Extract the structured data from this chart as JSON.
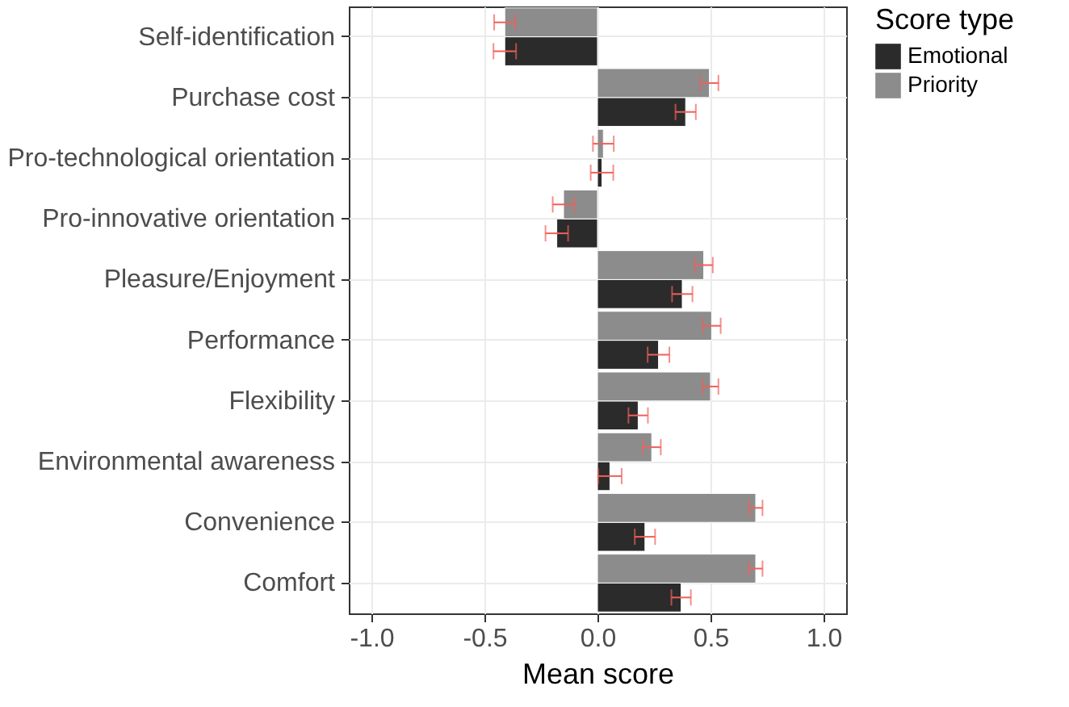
{
  "chart_data": {
    "type": "bar",
    "orientation": "horizontal",
    "xlabel": "Mean score",
    "legend_title": "Score type",
    "legend": "right",
    "grid": true,
    "categories": [
      "Self-identification",
      "Purchase cost",
      "Pro-technological orientation",
      "Pro-innovative orientation",
      "Pleasure/Enjoyment",
      "Performance",
      "Flexibility",
      "Environmental awareness",
      "Convenience",
      "Comfort"
    ],
    "xlim": [
      -1.1,
      1.1
    ],
    "xticks": [
      {
        "value": -1,
        "label": "-1.0"
      },
      {
        "value": -0.5,
        "label": "-0.5"
      },
      {
        "value": 0,
        "label": "0.0"
      },
      {
        "value": 0.5,
        "label": "0.5"
      },
      {
        "value": 1,
        "label": "1.0"
      }
    ],
    "series": [
      {
        "name": "Emotional",
        "color": "#2b2b2b",
        "values": [
          -0.41,
          0.39,
          0.02,
          -0.18,
          0.375,
          0.27,
          0.18,
          0.055,
          0.21,
          0.37
        ],
        "errors": [
          0.05,
          0.045,
          0.05,
          0.05,
          0.045,
          0.048,
          0.043,
          0.052,
          0.045,
          0.043
        ]
      },
      {
        "name": "Priority",
        "color": "#8c8c8c",
        "values": [
          -0.41,
          0.495,
          0.026,
          -0.15,
          0.47,
          0.505,
          0.5,
          0.24,
          0.7,
          0.7
        ],
        "errors": [
          0.047,
          0.04,
          0.046,
          0.048,
          0.04,
          0.04,
          0.035,
          0.04,
          0.03,
          0.03
        ]
      }
    ]
  }
}
